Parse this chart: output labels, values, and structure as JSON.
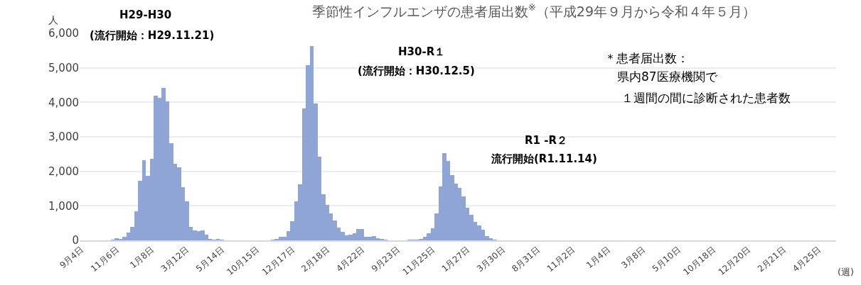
{
  "chart_data": {
    "type": "bar",
    "title": "季節性インフルエンザの患者届出数$^{※}$（平成29年９月から令和４年５月）",
    "ylabel": "人",
    "xlabel": "(週)",
    "annotations": [
      "H29-H30",
      "(流行開始：H29.11.21)",
      "H30-R１",
      "(流行開始：H30.12.5)",
      "R1 -R２",
      "流行開始(R1.11.14)",
      "＊患者届出数：",
      "県内87医療機関で",
      "１週間の間に診断された患者数"
    ],
    "categories": [
      "9月4日",
      null,
      null,
      null,
      null,
      null,
      null,
      null,
      null,
      "11月6日",
      null,
      null,
      null,
      null,
      null,
      null,
      null,
      null,
      "1月8日",
      null,
      null,
      null,
      null,
      null,
      null,
      null,
      null,
      "3月12日",
      null,
      null,
      null,
      null,
      null,
      null,
      null,
      null,
      "5月14日",
      null,
      null,
      null,
      null,
      null,
      null,
      null,
      null,
      "10月15日",
      null,
      null,
      null,
      null,
      null,
      null,
      null,
      null,
      "12月17日",
      null,
      null,
      null,
      null,
      null,
      null,
      null,
      null,
      "2月18日",
      null,
      null,
      null,
      null,
      null,
      null,
      null,
      null,
      "4月22日",
      null,
      null,
      null,
      null,
      null,
      null,
      null,
      null,
      "9月23日",
      null,
      null,
      null,
      null,
      null,
      null,
      null,
      null,
      "11月25日",
      null,
      null,
      null,
      null,
      null,
      null,
      null,
      null,
      "1月27日",
      null,
      null,
      null,
      null,
      null,
      null,
      null,
      null,
      "3月30日",
      null,
      null,
      null,
      null,
      null,
      null,
      null,
      null,
      "8月31日",
      null,
      null,
      null,
      null,
      null,
      null,
      null,
      null,
      "11月2日",
      null,
      null,
      null,
      null,
      null,
      null,
      null,
      null,
      "1月4日",
      null,
      null,
      null,
      null,
      null,
      null,
      null,
      null,
      "3月8日",
      null,
      null,
      null,
      null,
      null,
      null,
      null,
      null,
      "5月10日",
      null,
      null,
      null,
      null,
      null,
      null,
      null,
      null,
      "10月18日",
      null,
      null,
      null,
      null,
      null,
      null,
      null,
      null,
      "12月20日",
      null,
      null,
      null,
      null,
      null,
      null,
      null,
      null,
      "2月21日",
      null,
      null,
      null,
      null,
      null,
      null,
      null,
      null,
      "4月25日",
      null,
      null,
      null,
      null
    ],
    "values": [
      0,
      0,
      0,
      0,
      0,
      0,
      0,
      0,
      10,
      70,
      50,
      110,
      230,
      400,
      840,
      1730,
      2320,
      1880,
      2360,
      4200,
      4120,
      4410,
      4030,
      2820,
      2210,
      2120,
      1550,
      1140,
      390,
      280,
      270,
      290,
      160,
      40,
      20,
      30,
      20,
      0,
      0,
      0,
      0,
      0,
      0,
      0,
      0,
      0,
      0,
      0,
      0,
      10,
      40,
      100,
      110,
      260,
      560,
      1120,
      1630,
      3820,
      5070,
      5640,
      3970,
      2420,
      1330,
      1030,
      780,
      580,
      360,
      250,
      150,
      170,
      210,
      320,
      320,
      110,
      110,
      130,
      70,
      40,
      20,
      0,
      0,
      0,
      0,
      0,
      10,
      10,
      20,
      50,
      100,
      205,
      350,
      780,
      1570,
      2530,
      2300,
      1890,
      1640,
      1530,
      1270,
      950,
      750,
      540,
      440,
      315,
      115,
      55,
      20,
      0,
      0,
      0,
      0,
      0,
      0,
      0,
      0,
      0,
      0,
      0,
      0,
      0,
      0,
      0,
      0,
      0,
      0,
      0,
      0,
      0,
      0,
      0,
      0,
      0,
      0,
      0,
      0,
      0,
      0,
      0,
      0,
      0,
      0,
      0,
      0,
      0,
      0,
      0,
      0,
      0,
      0,
      0,
      0,
      0,
      0,
      0,
      0,
      0,
      0,
      0,
      0,
      0,
      0,
      0,
      0,
      0,
      0,
      0,
      0,
      0,
      0,
      0,
      0,
      0,
      0,
      0,
      0,
      0,
      0,
      0,
      0,
      0,
      0,
      0,
      0,
      0,
      0,
      0,
      0,
      0,
      0,
      0,
      0,
      0,
      0,
      0
    ],
    "color": "#8fa5d6",
    "ylim": [
      0,
      6000
    ],
    "yticks": [
      {
        "value": 0,
        "label": "0"
      },
      {
        "value": 1000,
        "label": "1,000"
      },
      {
        "value": 2000,
        "label": "2,000"
      },
      {
        "value": 3000,
        "label": "3,000"
      },
      {
        "value": 4000,
        "label": "4,000"
      },
      {
        "value": 5000,
        "label": "5,000"
      },
      {
        "value": 6000,
        "label": "6,000"
      }
    ],
    "grid": "y"
  }
}
